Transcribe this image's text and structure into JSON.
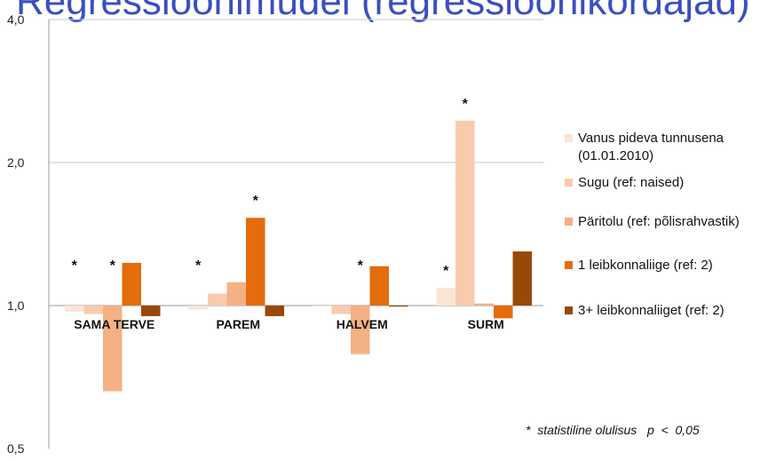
{
  "title": "Regressioonimudel (regressioonikordajad)",
  "chart_data": {
    "type": "bar",
    "yscale": "log",
    "ylim": [
      0.5,
      4.0
    ],
    "yticks": [
      "0,5",
      "1,0",
      "2,0",
      "4,0"
    ],
    "ytick_values": [
      0.5,
      1.0,
      2.0,
      4.0
    ],
    "baseline": 1.0,
    "legend_position": "right",
    "categories": [
      "SAMA TERVE",
      "PAREM",
      "HALVEM",
      "SURM"
    ],
    "series": [
      {
        "name": "Vanus pideva tunnusena (01.01.2010)",
        "color": "#fbe5d6",
        "values": [
          0.97,
          0.98,
          1.0,
          1.09
        ],
        "significant": [
          true,
          true,
          false,
          true
        ]
      },
      {
        "name": "Sugu (ref: naised)",
        "color": "#f8cbad",
        "values": [
          0.96,
          1.06,
          0.96,
          2.45
        ],
        "significant": [
          false,
          false,
          false,
          true
        ]
      },
      {
        "name": "Päritolu (ref: põlisrahvastik)",
        "color": "#f4b183",
        "values": [
          0.66,
          1.12,
          0.79,
          1.01
        ],
        "significant": [
          true,
          false,
          true,
          false
        ]
      },
      {
        "name": "1 leibkonnaliige (ref: 2)",
        "color": "#e46c0a",
        "values": [
          1.23,
          1.53,
          1.21,
          0.94
        ],
        "significant": [
          false,
          true,
          false,
          false
        ]
      },
      {
        "name": "3+ leibkonnaliiget (ref: 2)",
        "color": "#984807",
        "values": [
          0.95,
          0.95,
          0.995,
          1.3
        ],
        "significant": [
          false,
          false,
          false,
          false
        ]
      }
    ],
    "legend_lines": [
      [
        "Vanus pideva tunnusena",
        "(01.01.2010)"
      ],
      [
        "Sugu (ref: naised)"
      ],
      [
        "Päritolu (ref: põlisrahvastik)"
      ],
      [
        "1 leibkonnaliige (ref: 2)"
      ],
      [
        "3+ leibkonnaliiget (ref: 2)"
      ]
    ],
    "significance_marker": "*",
    "annotation": "*  statistiline olulisus   p  <  0,05"
  }
}
